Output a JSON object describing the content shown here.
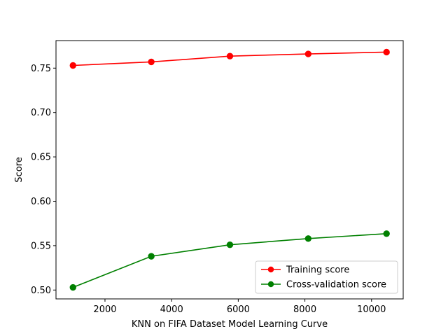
{
  "chart_data": {
    "type": "line",
    "title": "",
    "xlabel": "KNN on FIFA Dataset Model Learning Curve",
    "ylabel": "Score",
    "xlim": [
      530,
      10950
    ],
    "ylim": [
      0.49,
      0.781
    ],
    "xticks": [
      2000,
      4000,
      6000,
      8000,
      10000
    ],
    "yticks": [
      0.5,
      0.55,
      0.6,
      0.65,
      0.7,
      0.75
    ],
    "ytick_labels": [
      "0.50",
      "0.55",
      "0.60",
      "0.65",
      "0.70",
      "0.75"
    ],
    "grid": false,
    "legend_position": "lower-right",
    "x": [
      1040,
      3390,
      5750,
      8100,
      10450
    ],
    "series": [
      {
        "name": "Training score",
        "color": "#ff0000",
        "values": [
          0.753,
          0.757,
          0.7635,
          0.766,
          0.768
        ]
      },
      {
        "name": "Cross-validation score",
        "color": "#008000",
        "values": [
          0.503,
          0.538,
          0.551,
          0.558,
          0.5635
        ]
      }
    ]
  }
}
